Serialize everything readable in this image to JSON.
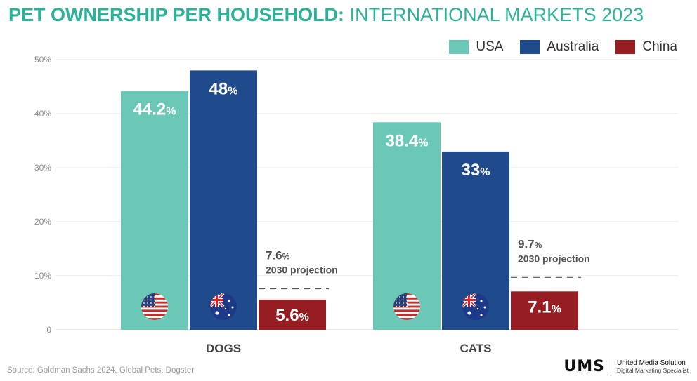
{
  "header": {
    "title_strong": "PET OWNERSHIP PER HOUSEHOLD:",
    "title_light": "INTERNATIONAL MARKETS 2023"
  },
  "legend": [
    {
      "label": "USA",
      "color": "#6cc8b6"
    },
    {
      "label": "Australia",
      "color": "#1f4a8c"
    },
    {
      "label": "China",
      "color": "#961e22"
    }
  ],
  "chart_data": {
    "type": "bar",
    "categories": [
      "DOGS",
      "CATS"
    ],
    "series": [
      {
        "name": "USA",
        "color": "#6cc8b6",
        "values": [
          44.2,
          38.4
        ],
        "labels": [
          "44.2",
          "38.4"
        ],
        "flag": "usa-flag-icon"
      },
      {
        "name": "Australia",
        "color": "#1f4a8c",
        "values": [
          48,
          33
        ],
        "labels": [
          "48",
          "33"
        ],
        "flag": "australia-flag-icon"
      },
      {
        "name": "China",
        "color": "#961e22",
        "values": [
          5.6,
          7.1
        ],
        "labels": [
          "5.6",
          "7.1"
        ]
      }
    ],
    "projections": [
      {
        "category": "DOGS",
        "value": 7.6,
        "label": "7.6",
        "note": "2030 projection"
      },
      {
        "category": "CATS",
        "value": 9.7,
        "label": "9.7",
        "note": "2030 projection"
      }
    ],
    "ylim": [
      0,
      50
    ],
    "yticks": [
      0,
      10,
      20,
      30,
      40,
      50
    ],
    "ytick_labels": [
      "0",
      "10%",
      "20%",
      "30%",
      "40%",
      "50%"
    ],
    "value_suffix": "%",
    "grid": true,
    "legend_position": "top-right"
  },
  "footer": {
    "source": "Source: Goldman Sachs 2024, Global Pets, Dogster",
    "brand_mark": "UMS",
    "brand_name": "United Media Solution",
    "brand_tag": "Digital Marketing Specialist"
  }
}
